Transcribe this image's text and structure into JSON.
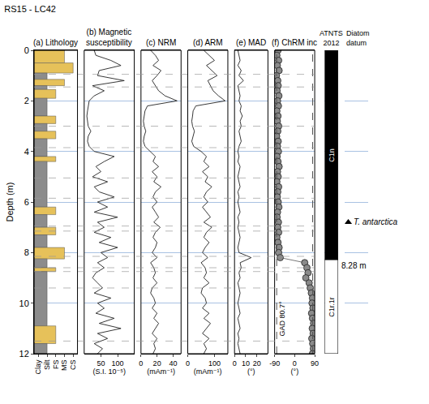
{
  "chart_data": {
    "type": "multi-panel",
    "title": "RS15 - LC42",
    "y_label": "Depth (m)",
    "ylim": [
      12,
      0
    ],
    "yticks": [
      0,
      2,
      4,
      6,
      8,
      10,
      12
    ],
    "grid": true,
    "core_breaks": [
      0.95,
      1.45,
      3.0,
      3.85,
      5.05,
      5.85,
      6.95,
      7.15,
      8.15,
      8.6,
      8.75,
      9.4,
      11.5
    ],
    "depth": [
      0,
      0.2,
      0.4,
      0.6,
      0.8,
      1,
      1.2,
      1.4,
      1.6,
      1.8,
      2,
      2.2,
      2.4,
      2.6,
      2.8,
      3,
      3.2,
      3.4,
      3.6,
      3.8,
      4,
      4.2,
      4.4,
      4.6,
      4.8,
      5,
      5.2,
      5.4,
      5.6,
      5.8,
      6,
      6.2,
      6.4,
      6.6,
      6.8,
      7,
      7.2,
      7.4,
      7.6,
      7.8,
      8,
      8.2,
      8.4,
      8.6,
      8.8,
      9,
      9.2,
      9.4,
      9.6,
      9.8,
      10,
      10.2,
      10.4,
      10.6,
      10.8,
      11,
      11.2,
      11.4,
      11.6,
      11.8,
      12
    ],
    "panels": [
      {
        "type": "lithology",
        "title": "(a) Lithology",
        "categories": [
          "Clay",
          "Silt",
          "FS",
          "MS",
          "CS"
        ],
        "intervals": [
          {
            "top": 0,
            "bottom": 0.5,
            "grain": "MS",
            "color": "#e6c15a"
          },
          {
            "top": 0.5,
            "bottom": 0.9,
            "grain": "CS",
            "color": "#e6c15a"
          },
          {
            "top": 0.9,
            "bottom": 1.15,
            "grain": "Silt",
            "color": "#8c8c8c"
          },
          {
            "top": 1.15,
            "bottom": 1.4,
            "grain": "MS",
            "color": "#e6c15a"
          },
          {
            "top": 1.4,
            "bottom": 1.55,
            "grain": "Silt",
            "color": "#8c8c8c"
          },
          {
            "top": 1.55,
            "bottom": 1.9,
            "grain": "FS",
            "color": "#e6c15a"
          },
          {
            "top": 1.9,
            "bottom": 2.6,
            "grain": "Silt",
            "color": "#8c8c8c"
          },
          {
            "top": 2.6,
            "bottom": 2.9,
            "grain": "FS",
            "color": "#e6c15a"
          },
          {
            "top": 2.9,
            "bottom": 3.2,
            "grain": "Silt",
            "color": "#8c8c8c"
          },
          {
            "top": 3.2,
            "bottom": 3.5,
            "grain": "FS",
            "color": "#e6c15a"
          },
          {
            "top": 3.5,
            "bottom": 4.2,
            "grain": "Silt",
            "color": "#8c8c8c"
          },
          {
            "top": 4.2,
            "bottom": 4.4,
            "grain": "FS",
            "color": "#e6c15a"
          },
          {
            "top": 4.4,
            "bottom": 6.2,
            "grain": "Silt",
            "color": "#8c8c8c"
          },
          {
            "top": 6.2,
            "bottom": 6.5,
            "grain": "FS",
            "color": "#e6c15a"
          },
          {
            "top": 6.5,
            "bottom": 7.0,
            "grain": "Silt",
            "color": "#8c8c8c"
          },
          {
            "top": 7.0,
            "bottom": 7.3,
            "grain": "FS",
            "color": "#e6c15a"
          },
          {
            "top": 7.3,
            "bottom": 7.8,
            "grain": "Silt",
            "color": "#8c8c8c"
          },
          {
            "top": 7.8,
            "bottom": 8.25,
            "grain": "MS",
            "color": "#e6c15a"
          },
          {
            "top": 8.25,
            "bottom": 8.6,
            "grain": "Silt",
            "color": "#8c8c8c"
          },
          {
            "top": 8.6,
            "bottom": 8.75,
            "grain": "FS",
            "color": "#e6c15a"
          },
          {
            "top": 8.75,
            "bottom": 10.9,
            "grain": "Silt",
            "color": "#8c8c8c"
          },
          {
            "top": 10.9,
            "bottom": 11.6,
            "grain": "FS",
            "color": "#e6c15a"
          },
          {
            "top": 11.6,
            "bottom": 12,
            "grain": "Silt",
            "color": "#8c8c8c"
          }
        ]
      },
      {
        "type": "line",
        "title": "(b) Magnetic\nsusceptibility",
        "x_label": "(S.I. 10⁻⁵)",
        "xlim": [
          0,
          150
        ],
        "xticks": [
          50,
          100
        ],
        "color": "#222222",
        "values": [
          30,
          35,
          80,
          110,
          45,
          40,
          120,
          25,
          60,
          30,
          15,
          12,
          10,
          8,
          10,
          12,
          20,
          12,
          10,
          15,
          30,
          90,
          60,
          35,
          50,
          25,
          70,
          30,
          45,
          90,
          40,
          70,
          30,
          100,
          40,
          60,
          30,
          80,
          45,
          100,
          50,
          70,
          40,
          60,
          35,
          25,
          40,
          55,
          30,
          80,
          40,
          60,
          35,
          90,
          45,
          110,
          40,
          70,
          30,
          55,
          40
        ]
      },
      {
        "type": "line",
        "title": "(c) NRM",
        "x_label": "(mAm⁻¹)",
        "xlim": [
          0,
          50
        ],
        "xticks": [
          0,
          20,
          40
        ],
        "color": "#222222",
        "values": [
          12,
          18,
          22,
          15,
          25,
          20,
          14,
          18,
          22,
          30,
          45,
          8,
          5,
          4,
          3,
          4,
          6,
          4,
          3,
          5,
          12,
          18,
          15,
          22,
          14,
          20,
          16,
          25,
          18,
          15,
          20,
          14,
          18,
          22,
          16,
          24,
          18,
          15,
          20,
          18,
          14,
          20,
          12,
          16,
          18,
          15,
          20,
          14,
          12,
          16,
          18,
          14,
          20,
          16,
          22,
          18,
          14,
          20,
          16,
          18,
          15
        ]
      },
      {
        "type": "line",
        "title": "(d) ARM",
        "x_label": "(mAm⁻¹)",
        "xlim": [
          0,
          150
        ],
        "xticks": [
          0,
          100
        ],
        "color": "#222222",
        "values": [
          60,
          80,
          100,
          70,
          90,
          110,
          75,
          85,
          95,
          115,
          140,
          30,
          20,
          18,
          15,
          18,
          25,
          20,
          15,
          22,
          50,
          70,
          60,
          80,
          55,
          75,
          65,
          90,
          70,
          60,
          75,
          55,
          70,
          85,
          60,
          90,
          70,
          60,
          80,
          65,
          55,
          75,
          50,
          65,
          70,
          60,
          80,
          55,
          50,
          65,
          70,
          55,
          80,
          60,
          85,
          70,
          55,
          80,
          60,
          70,
          60
        ]
      },
      {
        "type": "line",
        "title": "(e) MAD",
        "x_label": "(°)",
        "xlim": [
          0,
          30
        ],
        "xticks": [
          0,
          10,
          20
        ],
        "color": "#222222",
        "values": [
          3,
          4,
          5,
          3,
          6,
          4,
          8,
          3,
          4,
          5,
          4,
          6,
          5,
          7,
          5,
          6,
          4,
          5,
          6,
          4,
          3,
          4,
          3,
          5,
          4,
          3,
          4,
          5,
          3,
          4,
          3,
          4,
          5,
          3,
          4,
          3,
          4,
          5,
          4,
          3,
          4,
          15,
          5,
          6,
          4,
          5,
          3,
          4,
          5,
          4,
          3,
          4,
          5,
          3,
          4,
          5,
          3,
          4,
          3,
          4,
          5
        ]
      },
      {
        "type": "scatter",
        "title": "(f) ChRM inc",
        "x_label": "(°)",
        "xlim": [
          -90,
          90
        ],
        "xticks": [
          -90,
          0,
          90
        ],
        "color": "#8a8a8a",
        "marker": "circle",
        "values": [
          -75,
          -80,
          -72,
          -78,
          -70,
          -82,
          -76,
          -74,
          -79,
          -71,
          -77,
          -73,
          -80,
          -75,
          -78,
          -72,
          -76,
          -81,
          -74,
          -77,
          -73,
          -79,
          -75,
          -70,
          -77,
          -74,
          -80,
          -72,
          -76,
          -78,
          -74,
          -71,
          -77,
          -79,
          -73,
          -76,
          -72,
          -80,
          -75,
          -70,
          -72,
          -65,
          45,
          55,
          60,
          50,
          65,
          70,
          75,
          80,
          78,
          82,
          76,
          80,
          85,
          79,
          83,
          77,
          81,
          84,
          80
        ],
        "reference_lines": [
          {
            "value": -80.7,
            "label": "GAD 80.7°"
          },
          {
            "value": 80.7
          }
        ]
      },
      {
        "type": "polarity",
        "title": "ATNTS\n2012",
        "chrons": [
          {
            "top": 0,
            "bottom": 8.28,
            "label": "C1n",
            "color": "#000000"
          },
          {
            "top": 8.28,
            "bottom": 12,
            "label": "C1r.1r",
            "color": "#ffffff"
          }
        ],
        "boundary": {
          "value": 8.28,
          "label": "8.28 m"
        }
      },
      {
        "type": "datum",
        "title": "Diatom\ndatum",
        "events": [
          {
            "depth": 6.8,
            "label": "T. antarctica",
            "marker": "triangle-up"
          }
        ]
      }
    ]
  }
}
